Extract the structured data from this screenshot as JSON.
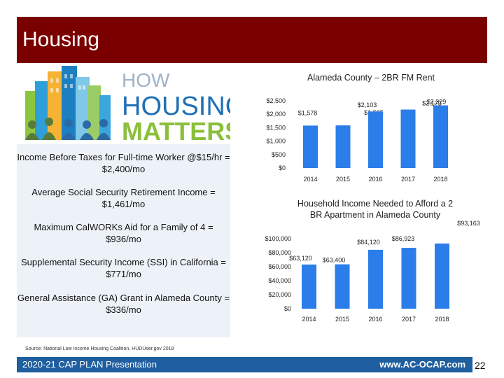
{
  "slide": {
    "title": "Housing",
    "logo": {
      "line1": "HOW",
      "line2": "HOUSING",
      "line3": "MATTERS"
    },
    "info_items": [
      "Income Before Taxes for Full-time Worker @$15/hr = $2,400/mo",
      "Average Social Security Retirement Income = $1,461/mo",
      "Maximum CalWORKs Aid for a Family of 4 = $936/mo",
      "Supplemental Security Income (SSI) in California = $771/mo",
      "General Assistance (GA) Grant in Alameda County = $336/mo"
    ],
    "source": "Source: National Low Income Housing Coalition, HUDUser.gov 2018",
    "footer_left": "2020-21 CAP PLAN Presentation",
    "footer_right": "www.AC-OCAP.com",
    "page_number": "22",
    "colors": {
      "header": "#7a0000",
      "bar": "#2b7de9",
      "footer": "#1f5fa0",
      "panel": "#edf2f9"
    }
  },
  "chart_data": [
    {
      "type": "bar",
      "title": "Alameda County – 2BR FM Rent",
      "categories": [
        "2014",
        "2015",
        "2016",
        "2017",
        "2018"
      ],
      "values": [
        1578,
        1585,
        2103,
        2173,
        2329
      ],
      "data_labels": [
        "$1,578",
        "$1,585",
        "$2,103",
        "$2,173",
        "$2,329"
      ],
      "yticks": [
        0,
        500,
        1000,
        1500,
        2000,
        2500
      ],
      "ytick_labels": [
        "$0",
        "$500",
        "$1,000",
        "$1,500",
        "$2,000",
        "$2,500"
      ],
      "ylim": [
        0,
        2500
      ],
      "grid": false,
      "legend": "none"
    },
    {
      "type": "bar",
      "title": "Household Income Needed to Afford a 2 BR Apartment in Alameda County",
      "categories": [
        "2014",
        "2015",
        "2016",
        "2017",
        "2018"
      ],
      "values": [
        63120,
        63400,
        84120,
        86923,
        93163
      ],
      "data_labels": [
        "$63,120",
        "$63,400",
        "$84,120",
        "$86,923",
        "$93,163"
      ],
      "yticks": [
        0,
        20000,
        40000,
        60000,
        80000,
        100000
      ],
      "ytick_labels": [
        "$0",
        "$20,000",
        "$40,000",
        "$60,000",
        "$80,000",
        "$100,000"
      ],
      "ylim": [
        0,
        100000
      ],
      "grid": false,
      "legend": "none"
    }
  ]
}
